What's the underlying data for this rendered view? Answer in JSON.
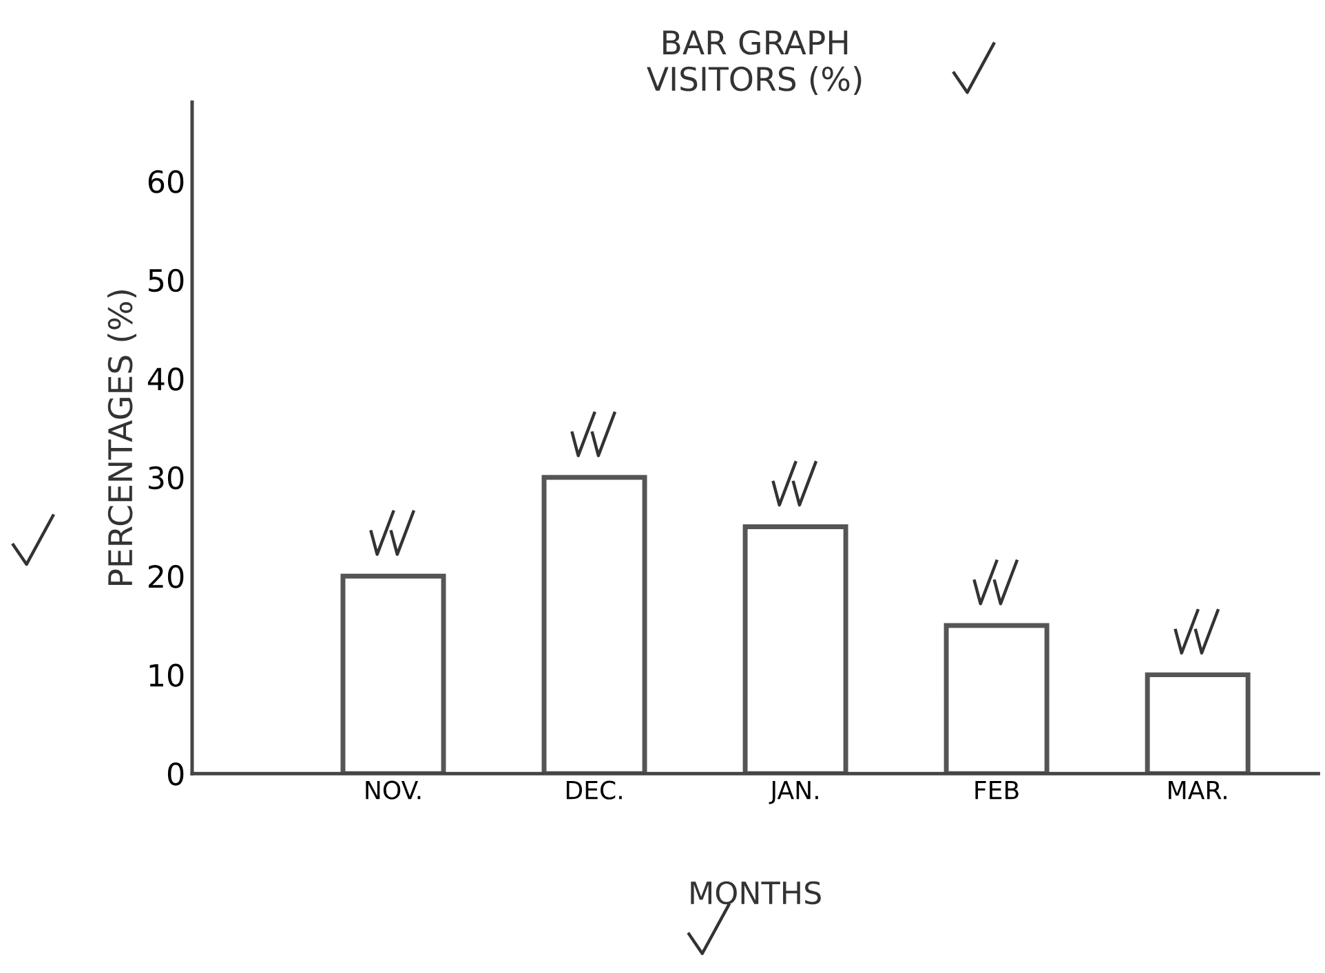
{
  "chart_data": {
    "type": "bar",
    "title": "BAR GRAPH\nVISITORS (%)",
    "xlabel": "MONTHS",
    "ylabel": "PERCENTAGES (%)",
    "categories": [
      "NOV.",
      "DEC.",
      "JAN.",
      "FEB",
      "MAR."
    ],
    "values": [
      20,
      30,
      25,
      15,
      10
    ],
    "color": "#ffffff",
    "ylim": [
      0,
      68
    ],
    "yticks": [
      0,
      10,
      20,
      30,
      40,
      50,
      60
    ],
    "grid": false,
    "legend": false
  }
}
